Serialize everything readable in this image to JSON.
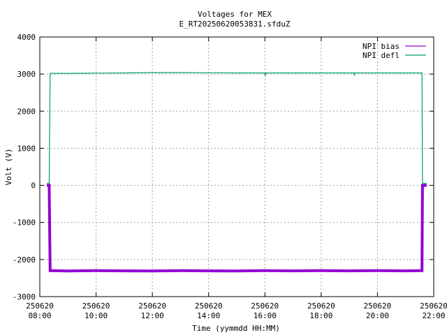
{
  "chart_data": {
    "type": "line",
    "title": "Voltages for MEX",
    "subtitle": "E_RT20250620053831.sfduZ",
    "xlabel": "Time (yymmdd HH:MM)",
    "ylabel": "Volt (V)",
    "ylim": [
      -3000,
      4000
    ],
    "xlim": [
      "2025-06-20 08:00",
      "2025-06-20 22:00"
    ],
    "yticks": [
      -3000,
      -2000,
      -1000,
      0,
      1000,
      2000,
      3000,
      4000
    ],
    "yticklabels": [
      "-3000",
      "-2000",
      "-1000",
      "0",
      "1000",
      "2000",
      "3000",
      "4000"
    ],
    "xticks": [
      "2025-06-20 08:00",
      "2025-06-20 10:00",
      "2025-06-20 12:00",
      "2025-06-20 14:00",
      "2025-06-20 16:00",
      "2025-06-20 18:00",
      "2025-06-20 20:00",
      "2025-06-20 22:00"
    ],
    "xticklabels": [
      [
        "250620",
        "08:00"
      ],
      [
        "250620",
        "10:00"
      ],
      [
        "250620",
        "12:00"
      ],
      [
        "250620",
        "14:00"
      ],
      [
        "250620",
        "16:00"
      ],
      [
        "250620",
        "18:00"
      ],
      [
        "250620",
        "20:00"
      ],
      [
        "250620",
        "22:00"
      ]
    ],
    "grid": true,
    "legend_position": "top-right",
    "series": [
      {
        "name": "NPI bias",
        "color": "#9400d3",
        "points": [
          [
            "2025-06-20 08:15",
            0
          ],
          [
            "2025-06-20 08:20",
            0
          ],
          [
            "2025-06-20 08:22",
            -2300
          ],
          [
            "2025-06-20 09:00",
            -2310
          ],
          [
            "2025-06-20 10:00",
            -2300
          ],
          [
            "2025-06-20 11:00",
            -2305
          ],
          [
            "2025-06-20 12:00",
            -2310
          ],
          [
            "2025-06-20 13:00",
            -2300
          ],
          [
            "2025-06-20 14:00",
            -2305
          ],
          [
            "2025-06-20 15:00",
            -2310
          ],
          [
            "2025-06-20 16:00",
            -2300
          ],
          [
            "2025-06-20 17:00",
            -2305
          ],
          [
            "2025-06-20 18:00",
            -2300
          ],
          [
            "2025-06-20 19:00",
            -2305
          ],
          [
            "2025-06-20 20:00",
            -2300
          ],
          [
            "2025-06-20 21:00",
            -2305
          ],
          [
            "2025-06-20 21:35",
            -2300
          ],
          [
            "2025-06-20 21:36",
            0
          ],
          [
            "2025-06-20 21:45",
            0
          ]
        ]
      },
      {
        "name": "NPI defl",
        "color": "#009e73",
        "points": [
          [
            "2025-06-20 08:15",
            50
          ],
          [
            "2025-06-20 08:20",
            50
          ],
          [
            "2025-06-20 08:22",
            3020
          ],
          [
            "2025-06-20 09:00",
            3020
          ],
          [
            "2025-06-20 10:00",
            3025
          ],
          [
            "2025-06-20 11:00",
            3030
          ],
          [
            "2025-06-20 12:00",
            3040
          ],
          [
            "2025-06-20 13:00",
            3040
          ],
          [
            "2025-06-20 14:00",
            3035
          ],
          [
            "2025-06-20 15:00",
            3030
          ],
          [
            "2025-06-20 16:00",
            3030
          ],
          [
            "2025-06-20 16:01",
            2950
          ],
          [
            "2025-06-20 16:02",
            3030
          ],
          [
            "2025-06-20 18:00",
            3030
          ],
          [
            "2025-06-20 19:10",
            3030
          ],
          [
            "2025-06-20 19:11",
            2960
          ],
          [
            "2025-06-20 19:12",
            3030
          ],
          [
            "2025-06-20 21:00",
            3030
          ],
          [
            "2025-06-20 21:35",
            3030
          ],
          [
            "2025-06-20 21:36",
            50
          ],
          [
            "2025-06-20 21:45",
            50
          ]
        ]
      }
    ]
  }
}
